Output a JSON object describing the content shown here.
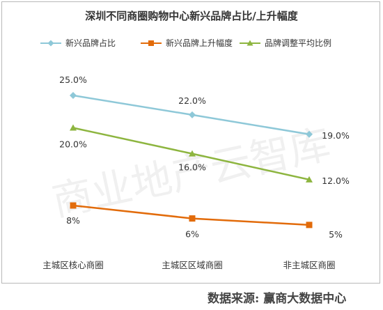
{
  "watermark": "商业地产云智库",
  "source": {
    "label": "数据来源:",
    "value": "赢商大数据中心"
  },
  "colors": {
    "series1": "#8ec8d8",
    "series2": "#e26b0a",
    "series3": "#8db53f"
  },
  "chart_data": {
    "type": "line",
    "title": "深圳不同商圈购物中心新兴品牌占比/上升幅度",
    "categories": [
      "主城区核心商圈",
      "主城区区域商圈",
      "非主城区商圈"
    ],
    "legend_position": "top",
    "grid": false,
    "series": [
      {
        "name": "新兴品牌占比",
        "values": [
          25.0,
          22.0,
          19.0
        ],
        "labels": [
          "25.0%",
          "22.0%",
          "19.0%"
        ],
        "marker": "diamond"
      },
      {
        "name": "新兴品牌上升幅度",
        "values": [
          8,
          6,
          5
        ],
        "labels": [
          "8%",
          "6%",
          "5%"
        ],
        "marker": "square"
      },
      {
        "name": "品牌调整平均比例",
        "values": [
          20.0,
          16.0,
          12.0
        ],
        "labels": [
          "20.0%",
          "16.0%",
          "12.0%"
        ],
        "marker": "triangle"
      }
    ]
  }
}
